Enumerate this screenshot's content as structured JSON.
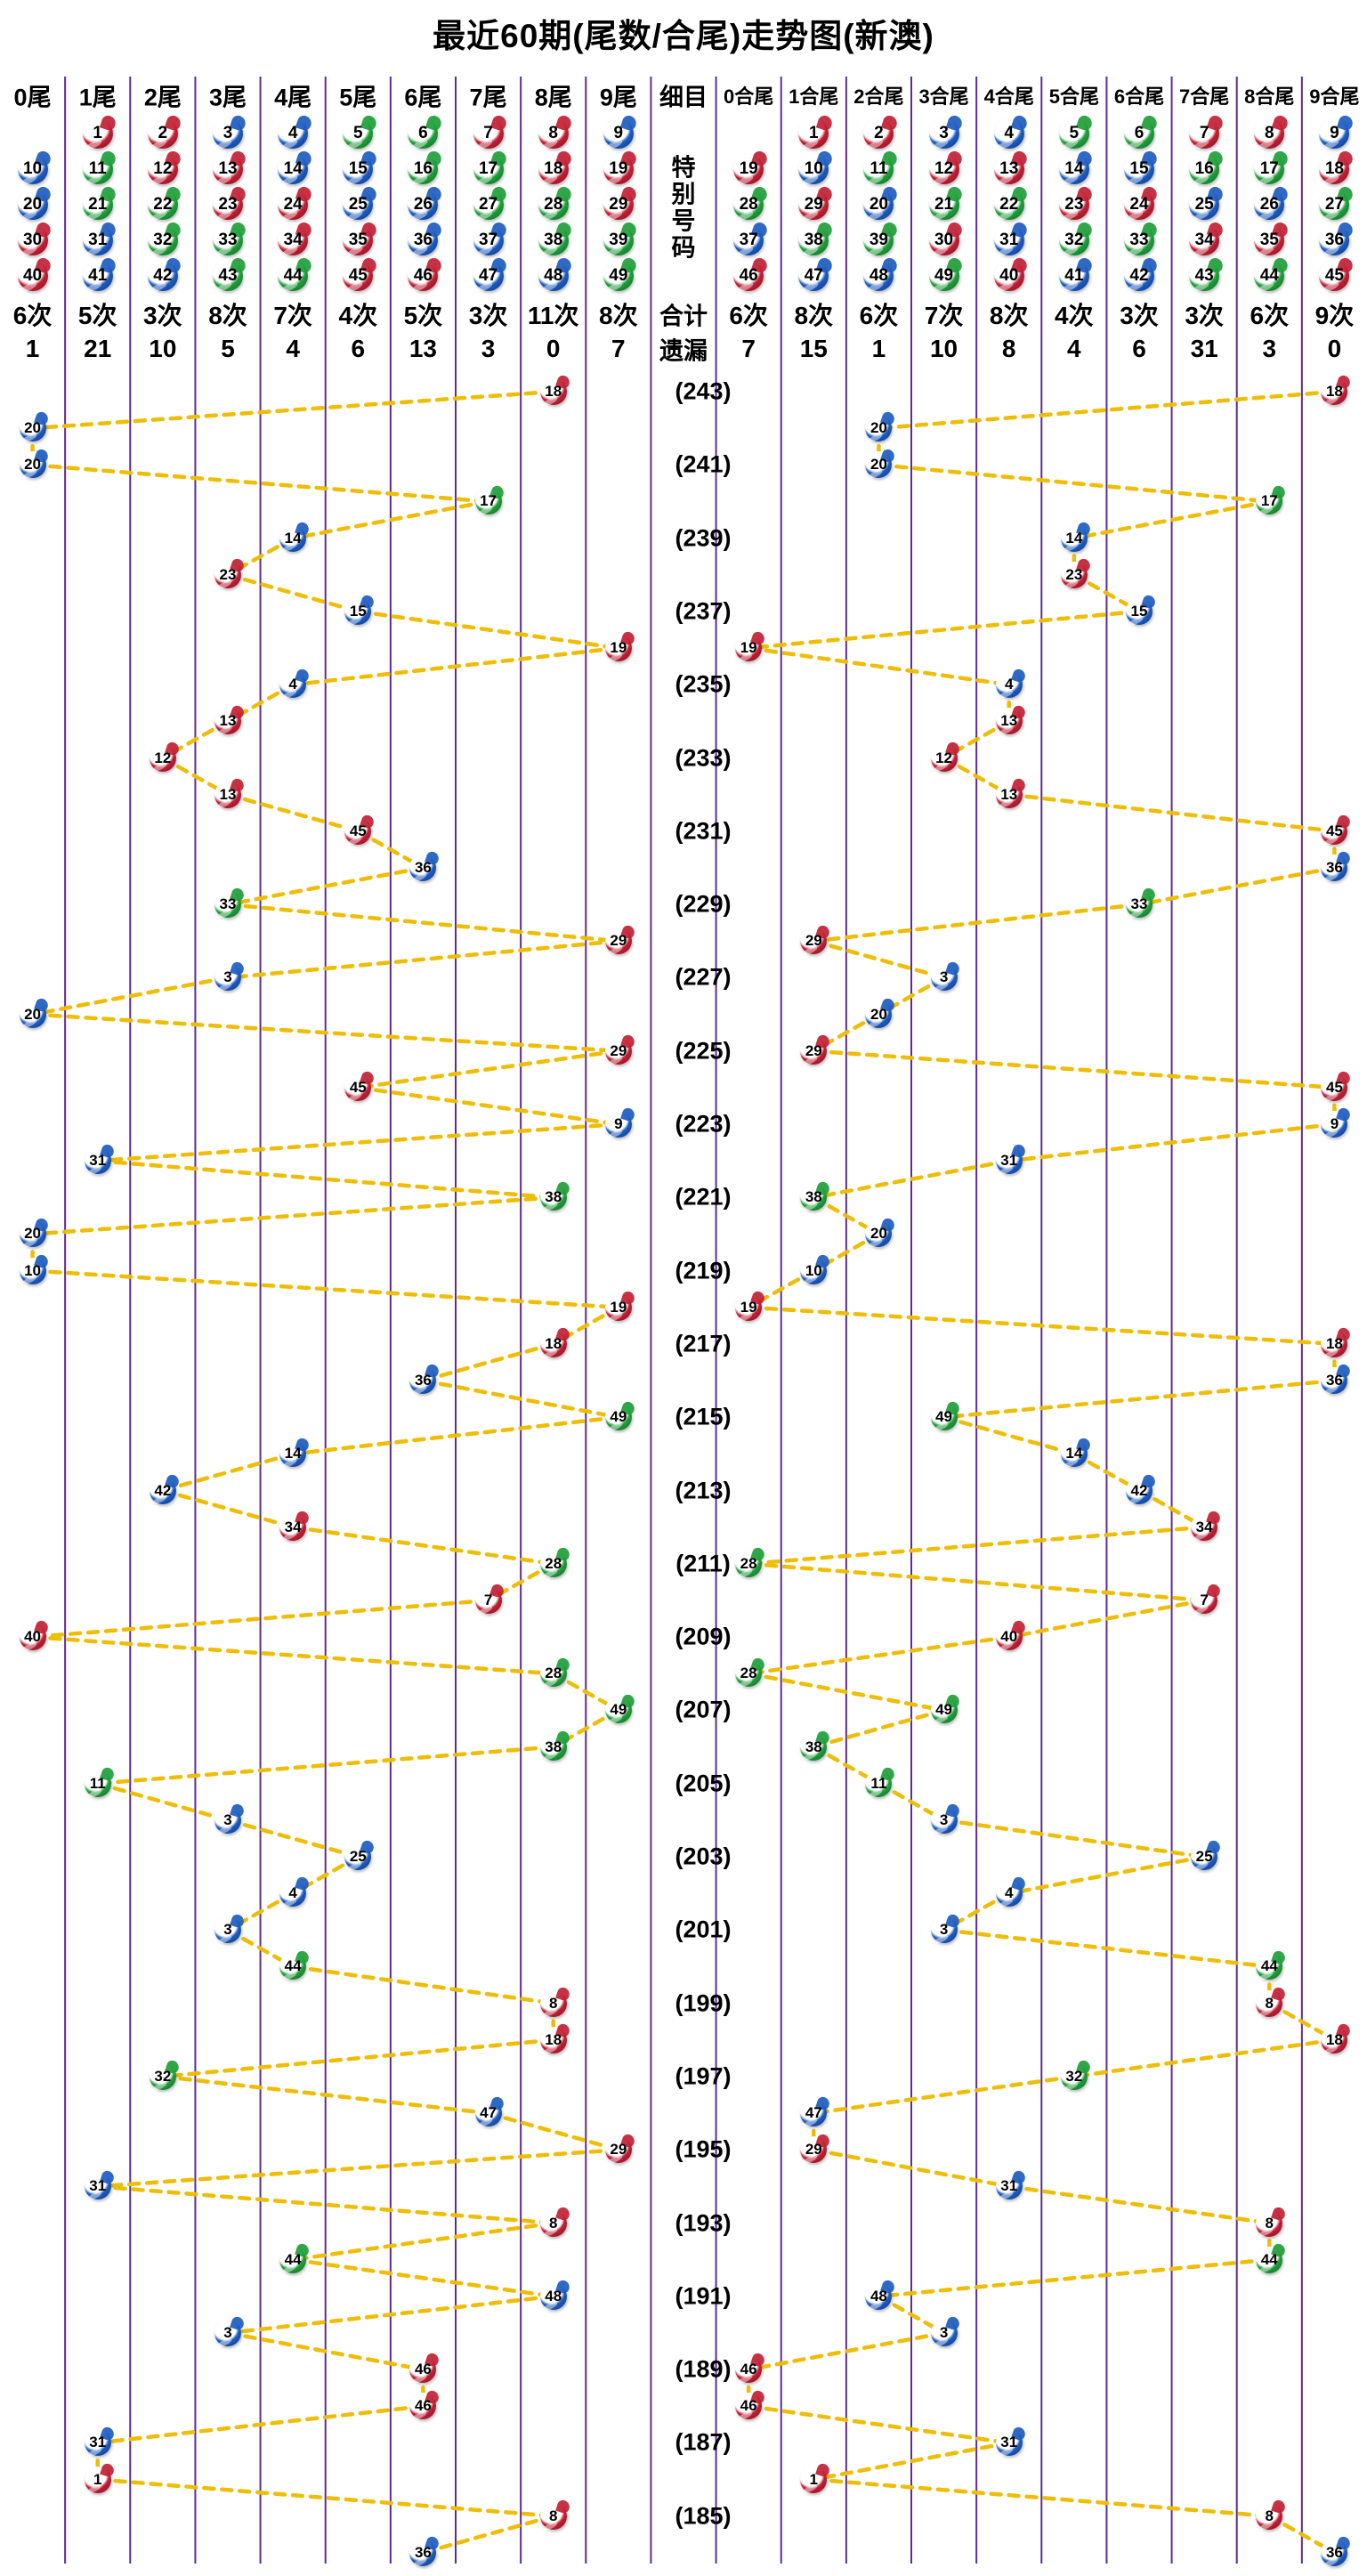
{
  "title": "最近60期(尾数/合尾)走势图(新澳)",
  "detail_column": {
    "header": "细目",
    "special_label": "特别号码",
    "total_label": "合计",
    "miss_label": "遗漏"
  },
  "tail_columns": [
    {
      "label": "0尾",
      "numbers": [
        10,
        20,
        30,
        40
      ],
      "count": "6次",
      "miss": "1"
    },
    {
      "label": "1尾",
      "numbers": [
        1,
        11,
        21,
        31,
        41
      ],
      "count": "5次",
      "miss": "21"
    },
    {
      "label": "2尾",
      "numbers": [
        2,
        12,
        22,
        32,
        42
      ],
      "count": "3次",
      "miss": "10"
    },
    {
      "label": "3尾",
      "numbers": [
        3,
        13,
        23,
        33,
        43
      ],
      "count": "8次",
      "miss": "5"
    },
    {
      "label": "4尾",
      "numbers": [
        4,
        14,
        24,
        34,
        44
      ],
      "count": "7次",
      "miss": "4"
    },
    {
      "label": "5尾",
      "numbers": [
        5,
        15,
        25,
        35,
        45
      ],
      "count": "4次",
      "miss": "6"
    },
    {
      "label": "6尾",
      "numbers": [
        6,
        16,
        26,
        36,
        46
      ],
      "count": "5次",
      "miss": "13"
    },
    {
      "label": "7尾",
      "numbers": [
        7,
        17,
        27,
        37,
        47
      ],
      "count": "3次",
      "miss": "3"
    },
    {
      "label": "8尾",
      "numbers": [
        8,
        18,
        28,
        38,
        48
      ],
      "count": "11次",
      "miss": "0"
    },
    {
      "label": "9尾",
      "numbers": [
        9,
        19,
        29,
        39,
        49
      ],
      "count": "8次",
      "miss": "7"
    }
  ],
  "sum_columns": [
    {
      "label": "0合尾",
      "numbers": [
        19,
        28,
        37,
        46
      ],
      "count": "6次",
      "miss": "7"
    },
    {
      "label": "1合尾",
      "numbers": [
        1,
        10,
        29,
        38,
        47
      ],
      "count": "8次",
      "miss": "15"
    },
    {
      "label": "2合尾",
      "numbers": [
        2,
        11,
        20,
        39,
        48
      ],
      "count": "6次",
      "miss": "1"
    },
    {
      "label": "3合尾",
      "numbers": [
        3,
        12,
        21,
        30,
        49
      ],
      "count": "7次",
      "miss": "10"
    },
    {
      "label": "4合尾",
      "numbers": [
        4,
        13,
        22,
        31,
        40
      ],
      "count": "8次",
      "miss": "8"
    },
    {
      "label": "5合尾",
      "numbers": [
        5,
        14,
        23,
        32,
        41
      ],
      "count": "4次",
      "miss": "4"
    },
    {
      "label": "6合尾",
      "numbers": [
        6,
        15,
        24,
        33,
        42
      ],
      "count": "3次",
      "miss": "6"
    },
    {
      "label": "7合尾",
      "numbers": [
        7,
        16,
        25,
        34,
        43
      ],
      "count": "3次",
      "miss": "31"
    },
    {
      "label": "8合尾",
      "numbers": [
        8,
        17,
        26,
        35,
        44
      ],
      "count": "6次",
      "miss": "3"
    },
    {
      "label": "9合尾",
      "numbers": [
        9,
        18,
        27,
        36,
        45
      ],
      "count": "9次",
      "miss": "0"
    }
  ],
  "ball_color_groups": {
    "red": [
      1,
      2,
      7,
      8,
      12,
      13,
      18,
      19,
      23,
      24,
      29,
      30,
      34,
      35,
      40,
      45,
      46
    ],
    "blue": [
      3,
      4,
      9,
      10,
      14,
      15,
      20,
      25,
      26,
      31,
      36,
      37,
      41,
      42,
      47,
      48
    ],
    "green": [
      5,
      6,
      11,
      16,
      17,
      21,
      22,
      27,
      28,
      32,
      33,
      38,
      39,
      43,
      44,
      49
    ]
  },
  "palette": {
    "red": "#c21f34",
    "blue": "#1d5cc0",
    "green": "#1f9e3a",
    "trend_line": "#eebd05",
    "column_divider": "#5e2b91",
    "text": "#000000"
  },
  "chart_data": {
    "type": "scatter",
    "title": "最近60期(尾数/合尾)走势图(新澳)",
    "left_axis_categories": [
      "0尾",
      "1尾",
      "2尾",
      "3尾",
      "4尾",
      "5尾",
      "6尾",
      "7尾",
      "8尾",
      "9尾"
    ],
    "right_axis_categories": [
      "0合尾",
      "1合尾",
      "2合尾",
      "3合尾",
      "4合尾",
      "5合尾",
      "6合尾",
      "7合尾",
      "8合尾",
      "9合尾"
    ],
    "numbers_top_to_bottom": [
      18,
      20,
      20,
      17,
      14,
      23,
      15,
      19,
      4,
      13,
      12,
      13,
      45,
      36,
      33,
      29,
      3,
      20,
      29,
      45,
      9,
      31,
      38,
      20,
      10,
      19,
      18,
      36,
      49,
      14,
      42,
      34,
      28,
      7,
      40,
      28,
      49,
      38,
      11,
      3,
      25,
      4,
      3,
      44,
      8,
      18,
      32,
      47,
      29,
      31,
      8,
      44,
      48,
      3,
      46,
      46,
      31,
      1,
      8,
      36
    ],
    "period_labels": [
      243,
      241,
      239,
      237,
      235,
      233,
      231,
      229,
      227,
      225,
      223,
      221,
      219,
      217,
      215,
      213,
      211,
      209,
      207,
      205,
      203,
      201,
      199,
      197,
      195,
      193,
      191,
      189,
      187,
      185
    ],
    "tail_counts": [
      "6次",
      "5次",
      "3次",
      "8次",
      "7次",
      "4次",
      "5次",
      "3次",
      "11次",
      "8次"
    ],
    "tail_misses": [
      "1",
      "21",
      "10",
      "5",
      "4",
      "6",
      "13",
      "3",
      "0",
      "7"
    ],
    "sum_counts": [
      "6次",
      "8次",
      "6次",
      "7次",
      "8次",
      "4次",
      "3次",
      "3次",
      "6次",
      "9次"
    ],
    "sum_misses": [
      "7",
      "15",
      "1",
      "10",
      "8",
      "4",
      "6",
      "31",
      "3",
      "0"
    ]
  }
}
